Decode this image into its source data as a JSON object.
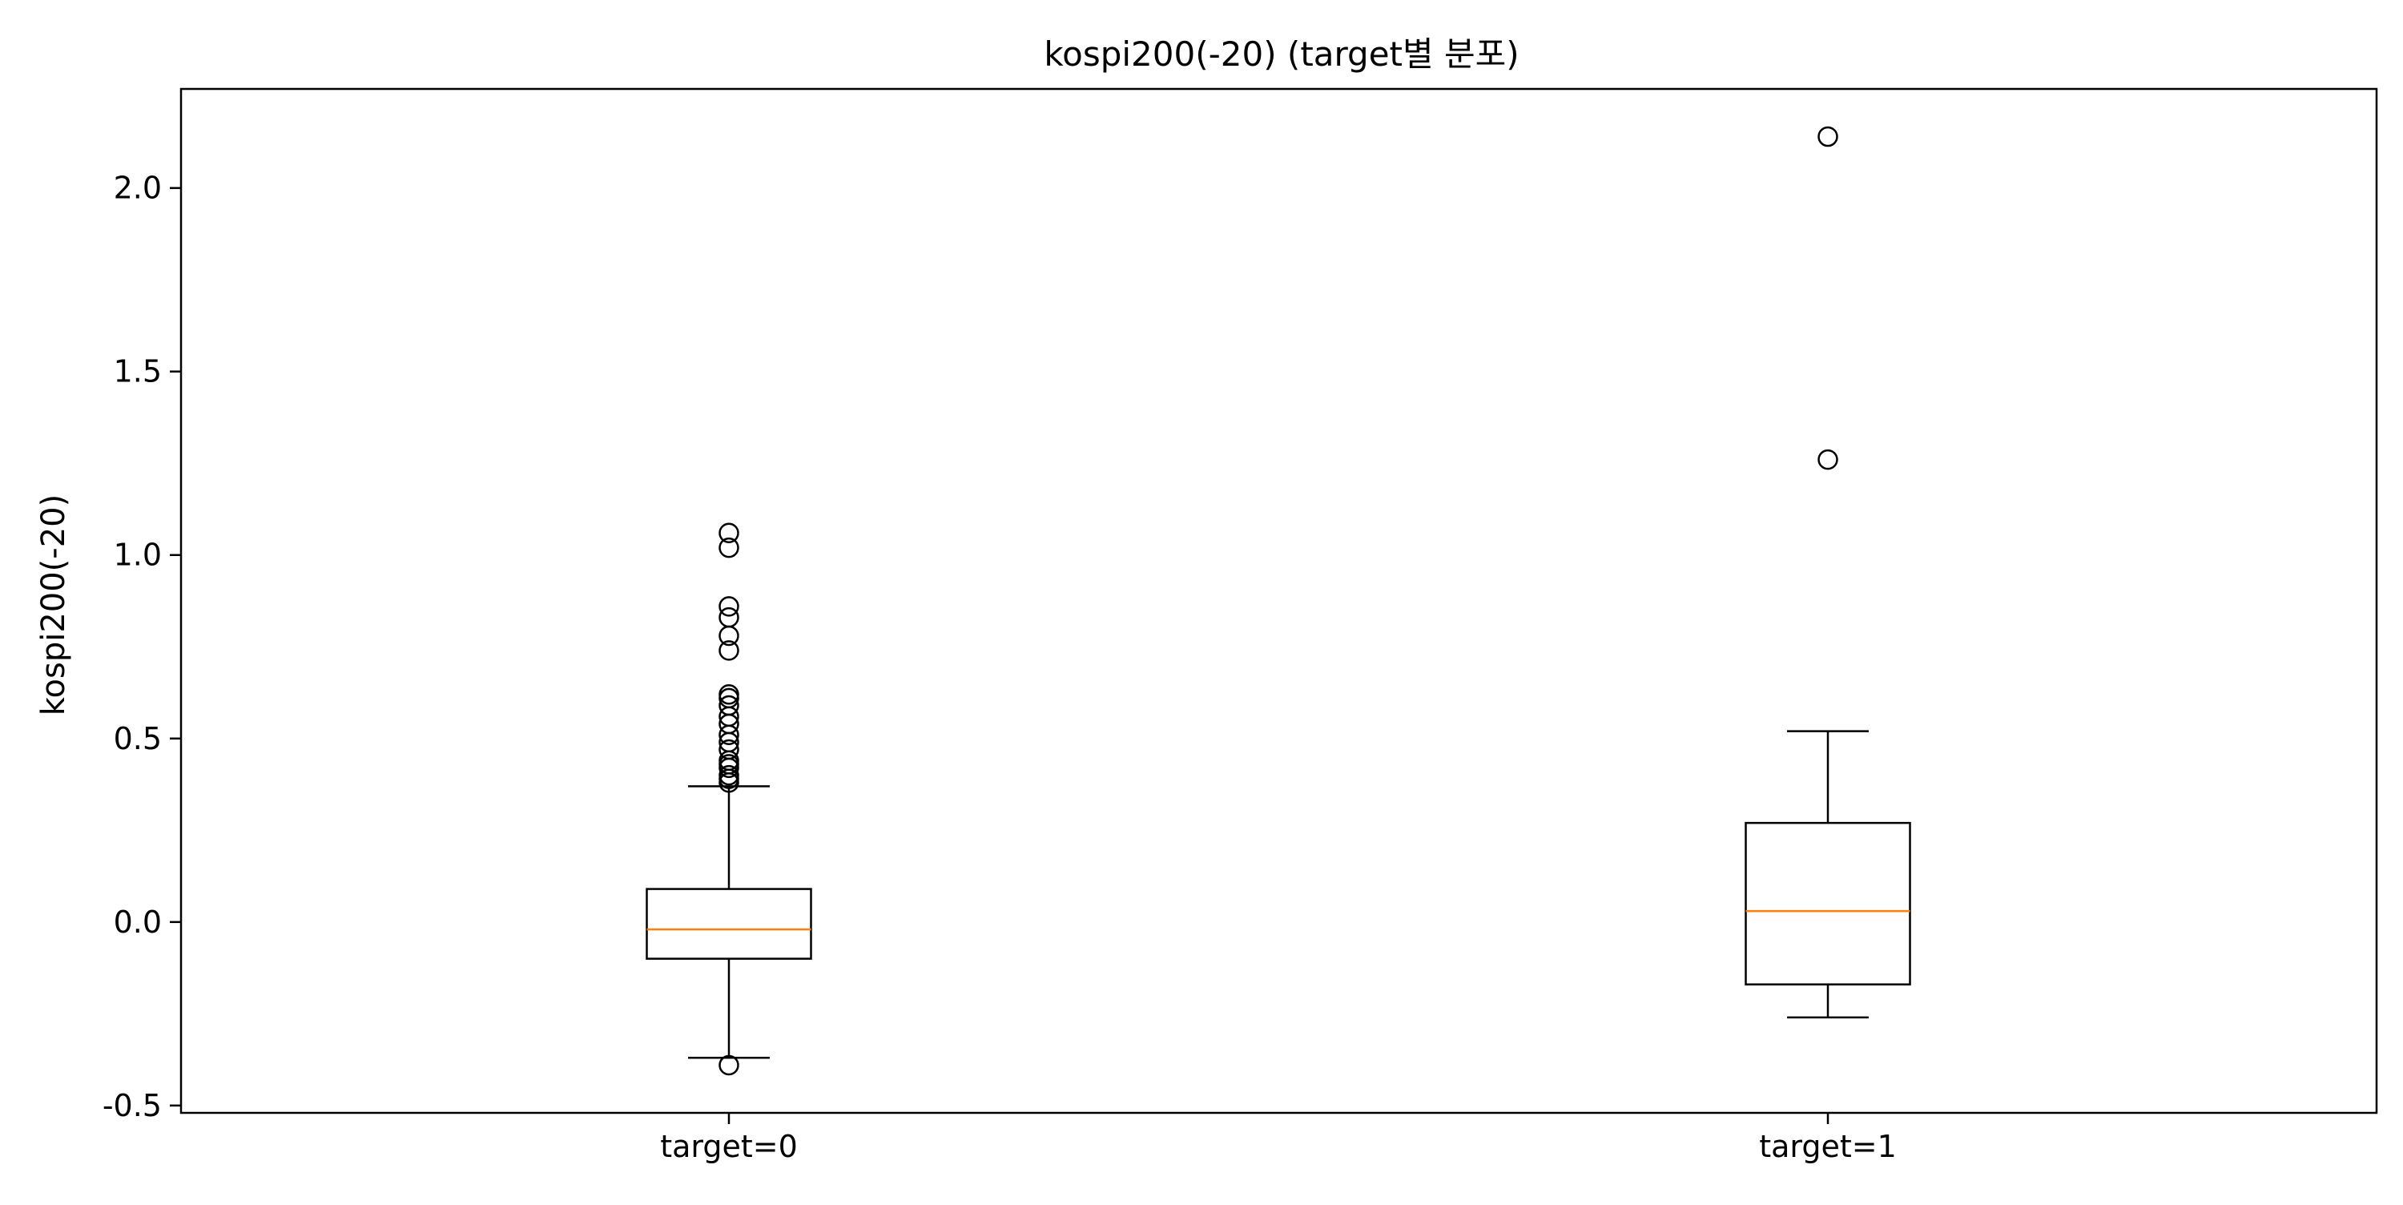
{
  "chart_data": {
    "type": "box",
    "title": "kospi200(-20) (target별 분포)",
    "xlabel": "",
    "ylabel": "kospi200(-20)",
    "ylim": [
      -0.52,
      2.27
    ],
    "yticks": [
      -0.5,
      0.0,
      0.5,
      1.0,
      1.5,
      2.0
    ],
    "ytick_labels": [
      "-0.5",
      "0.0",
      "0.5",
      "1.0",
      "1.5",
      "2.0"
    ],
    "grid": false,
    "legend": "none",
    "colors": {
      "box": "#000000",
      "median": "#ff7f0e",
      "frame": "#000000",
      "background": "#ffffff"
    },
    "categories": [
      "target=0",
      "target=1"
    ],
    "boxes": [
      {
        "label": "target=0",
        "whisker_low": -0.37,
        "q1": -0.1,
        "median": -0.02,
        "q3": 0.09,
        "whisker_high": 0.37,
        "outliers": [
          -0.39,
          0.38,
          0.39,
          0.4,
          0.42,
          0.43,
          0.44,
          0.47,
          0.49,
          0.51,
          0.54,
          0.56,
          0.59,
          0.61,
          0.62,
          0.74,
          0.78,
          0.83,
          0.86,
          1.02,
          1.06
        ]
      },
      {
        "label": "target=1",
        "whisker_low": -0.26,
        "q1": -0.17,
        "median": 0.03,
        "q3": 0.27,
        "whisker_high": 0.52,
        "outliers": [
          1.26,
          2.14
        ]
      }
    ]
  }
}
